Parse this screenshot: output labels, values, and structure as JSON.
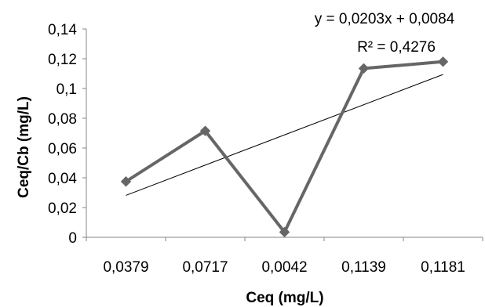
{
  "chart_data": {
    "type": "line",
    "categories": [
      "0,0379",
      "0,0717",
      "0,0042",
      "0,1139",
      "0,1181"
    ],
    "series": [
      {
        "values": [
          0.0375,
          0.0715,
          0.0035,
          0.1135,
          0.118
        ],
        "color": "#666666",
        "marker": "diamond"
      }
    ],
    "trendline": {
      "type": "linear",
      "equation": "y = 0,0203x + 0,0084",
      "r_squared": "R² = 0,4276",
      "color": "#000000"
    },
    "ylim": [
      0,
      0.14
    ],
    "yticks": [
      0,
      0.02,
      0.04,
      0.06,
      0.08,
      0.1,
      0.12,
      0.14
    ],
    "ytick_labels": [
      "0",
      "0,02",
      "0,04",
      "0,06",
      "0,08",
      "0,1",
      "0,12",
      "0,14"
    ],
    "xlabel": "Ceq (mg/L)",
    "ylabel": "Ceq/Cb (mg/L)",
    "grid": false
  }
}
